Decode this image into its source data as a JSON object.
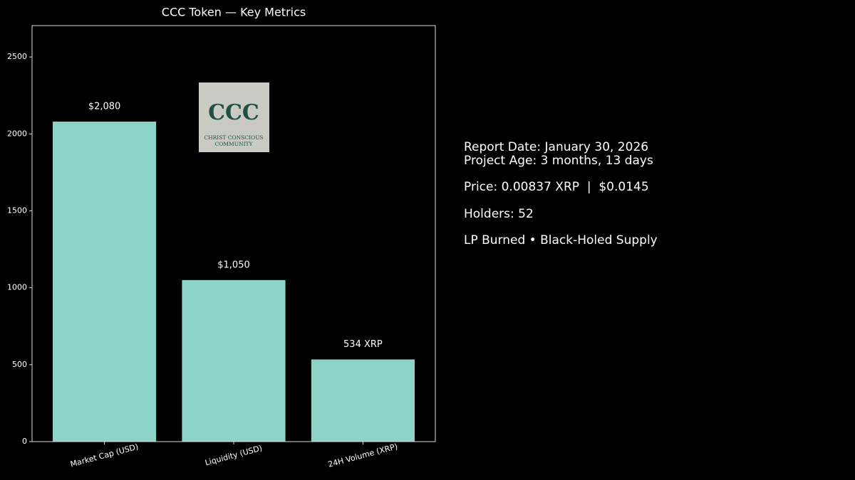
{
  "chart_data": {
    "type": "bar",
    "title": "CCC Token — Key Metrics",
    "categories": [
      "Market Cap (USD)",
      "Liquidity (USD)",
      "24H Volume (XRP)"
    ],
    "values": [
      2080,
      1050,
      534
    ],
    "value_labels": [
      "$2,080",
      "$1,050",
      "534 XRP"
    ],
    "color": "#8dd3c7",
    "ylim": [
      0,
      2704
    ],
    "yticks": [
      0,
      500,
      1000,
      1500,
      2000,
      2500
    ],
    "grid": false
  },
  "logo": {
    "text": "CCC",
    "caption": [
      "CHRIST CONSCIOUS",
      "COMMUNITY"
    ]
  },
  "info": {
    "lines": [
      "Report Date: January 30, 2026",
      "Project Age: 3 months, 13 days",
      "Price: 0.00837 XRP  |  $0.0145",
      "Holders: 52",
      "LP Burned • Black-Holed Supply"
    ]
  }
}
